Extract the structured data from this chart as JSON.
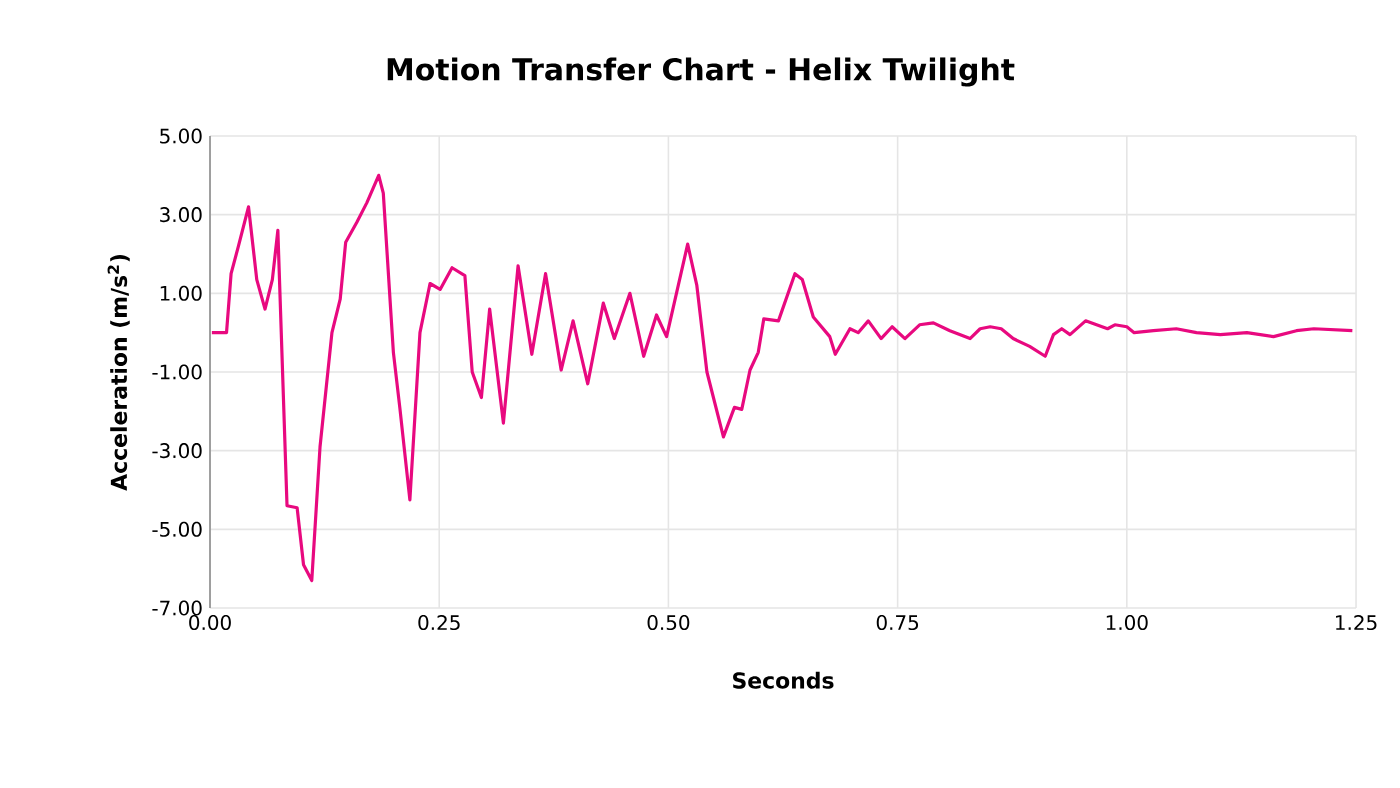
{
  "chart_data": {
    "type": "line",
    "title": "Motion Transfer Chart - Helix Twilight",
    "xlabel": "Seconds",
    "ylabel": "Acceleration (m/s$^{2}$)",
    "xlim": [
      0,
      1.25
    ],
    "ylim": [
      -7,
      5
    ],
    "xticks": [
      {
        "value": 0,
        "label": "0.00"
      },
      {
        "value": 0.25,
        "label": "0.25"
      },
      {
        "value": 0.5,
        "label": "0.50"
      },
      {
        "value": 0.75,
        "label": "0.75"
      },
      {
        "value": 1,
        "label": "1.00"
      },
      {
        "value": 1.25,
        "label": "1.25"
      }
    ],
    "yticks": [
      {
        "value": -7,
        "label": "-7.00"
      },
      {
        "value": -5,
        "label": "-5.00"
      },
      {
        "value": -3,
        "label": "-3.00"
      },
      {
        "value": -1,
        "label": "-1.00"
      },
      {
        "value": 1,
        "label": "1.00"
      },
      {
        "value": 3,
        "label": "3.00"
      },
      {
        "value": 5,
        "label": "5.00"
      }
    ],
    "grid": true,
    "marker": "none",
    "line_style": "solid",
    "series": [
      {
        "color": "#e8097f",
        "x": [
          0.002,
          0.018,
          0.023,
          0.031,
          0.042,
          0.051,
          0.06,
          0.068,
          0.074,
          0.084,
          0.095,
          0.102,
          0.111,
          0.12,
          0.133,
          0.142,
          0.148,
          0.16,
          0.171,
          0.184,
          0.189,
          0.2,
          0.207,
          0.218,
          0.229,
          0.24,
          0.251,
          0.264,
          0.278,
          0.286,
          0.296,
          0.305,
          0.32,
          0.336,
          0.351,
          0.366,
          0.383,
          0.396,
          0.412,
          0.429,
          0.441,
          0.458,
          0.473,
          0.487,
          0.498,
          0.521,
          0.531,
          0.542,
          0.56,
          0.572,
          0.58,
          0.589,
          0.598,
          0.604,
          0.62,
          0.638,
          0.646,
          0.658,
          0.676,
          0.682,
          0.698,
          0.707,
          0.718,
          0.732,
          0.744,
          0.758,
          0.774,
          0.789,
          0.807,
          0.829,
          0.84,
          0.851,
          0.863,
          0.876,
          0.894,
          0.911,
          0.92,
          0.929,
          0.938,
          0.955,
          0.979,
          0.987,
          1.0,
          1.008,
          1.029,
          1.054,
          1.076,
          1.102,
          1.131,
          1.16,
          1.185,
          1.204,
          1.246
        ],
        "values": [
          0,
          0,
          1.5,
          2.2,
          3.2,
          1.35,
          0.6,
          1.35,
          2.6,
          -4.4,
          -4.45,
          -5.9,
          -6.3,
          -2.9,
          0,
          0.85,
          2.3,
          2.8,
          3.3,
          4.0,
          3.55,
          -0.5,
          -1.9,
          -4.25,
          0,
          1.25,
          1.1,
          1.65,
          1.45,
          -1.0,
          -1.65,
          0.6,
          -2.3,
          1.7,
          -0.55,
          1.5,
          -0.95,
          0.3,
          -1.3,
          0.75,
          -0.15,
          1.0,
          -0.6,
          0.45,
          -0.1,
          2.25,
          1.2,
          -1.0,
          -2.65,
          -1.9,
          -1.95,
          -0.95,
          -0.5,
          0.35,
          0.3,
          1.5,
          1.35,
          0.4,
          -0.1,
          -0.55,
          0.1,
          0,
          0.3,
          -0.15,
          0.15,
          -0.15,
          0.2,
          0.25,
          0.05,
          -0.15,
          0.1,
          0.15,
          0.1,
          -0.15,
          -0.35,
          -0.6,
          -0.05,
          0.1,
          -0.05,
          0.3,
          0.1,
          0.2,
          0.15,
          0,
          0.05,
          0.1,
          0,
          -0.05,
          0,
          -0.1,
          0.05,
          0.1,
          0.05
        ]
      }
    ]
  }
}
